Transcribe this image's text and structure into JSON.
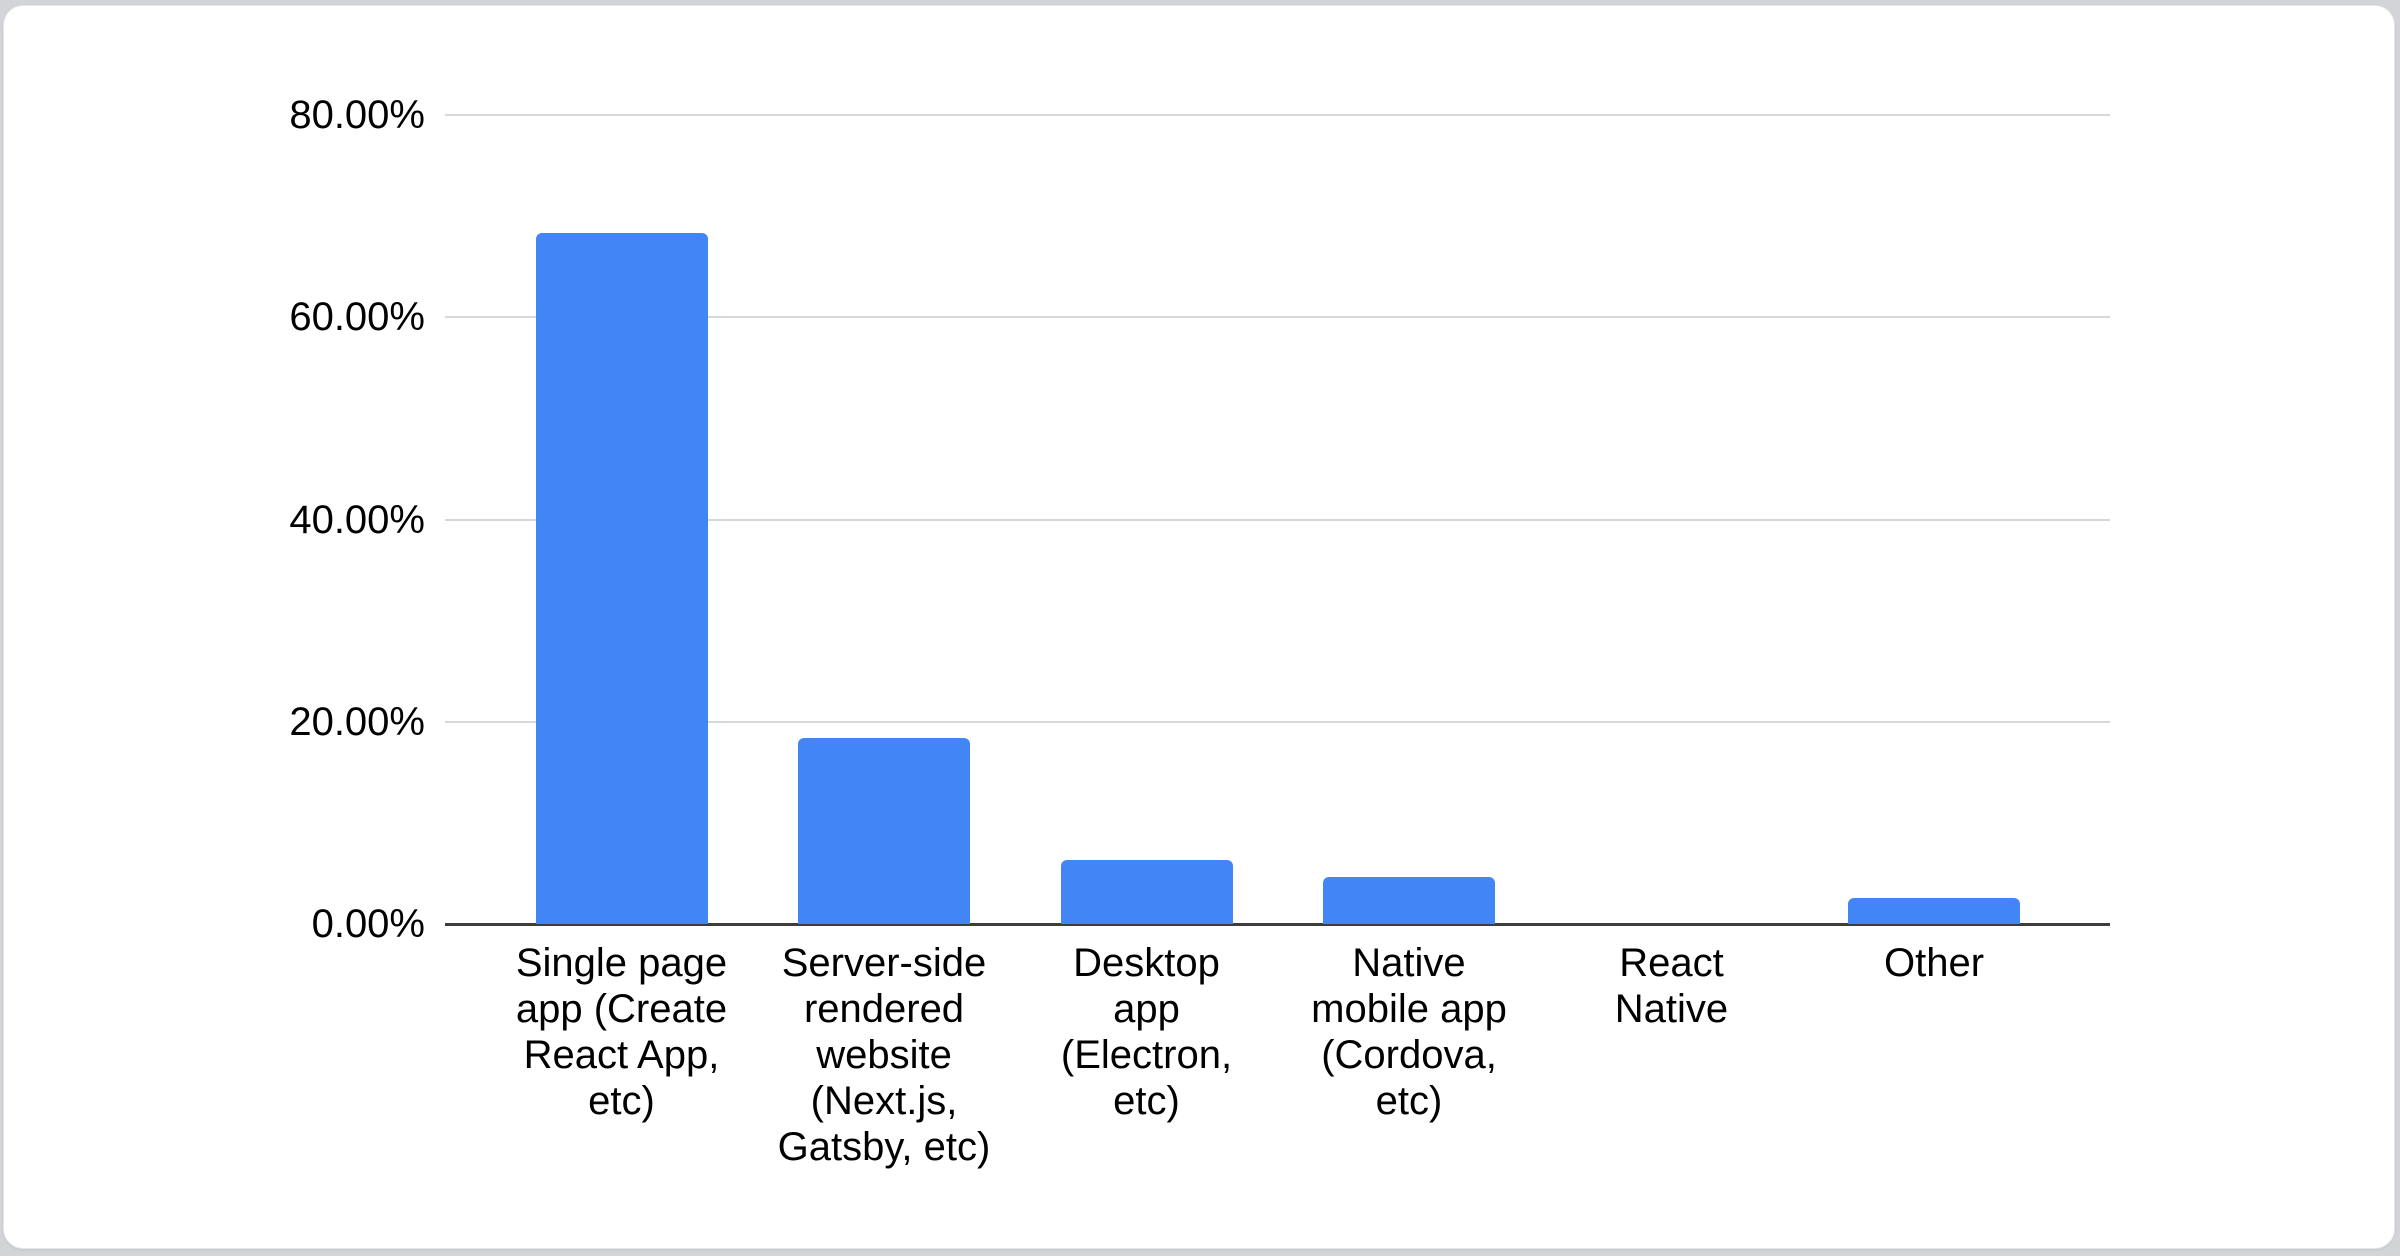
{
  "page": {
    "background_color": "#d2d4d8",
    "card_background_color": "#ffffff"
  },
  "chart_data": {
    "type": "bar",
    "title": "",
    "categories": [
      "Single page app (Create React App, etc)",
      "Server-side rendered website (Next.js, Gatsby, etc)",
      "Desktop app (Electron, etc)",
      "Native mobile app (Cordova, etc)",
      "React Native",
      "Other"
    ],
    "category_lines": [
      [
        "Single page",
        "app (Create",
        "React App,",
        "etc)"
      ],
      [
        "Server-side",
        "rendered",
        "website",
        "(Next.js,",
        "Gatsby, etc)"
      ],
      [
        "Desktop",
        "app",
        "(Electron,",
        "etc)"
      ],
      [
        "Native",
        "mobile app",
        "(Cordova,",
        "etc)"
      ],
      [
        "React",
        "Native"
      ],
      [
        "Other"
      ]
    ],
    "values": [
      68.3,
      18.4,
      6.3,
      4.6,
      0,
      2.6
    ],
    "unit": "%",
    "y_ticks": [
      {
        "label": "80.00%",
        "value": 80
      },
      {
        "label": "60.00%",
        "value": 60
      },
      {
        "label": "40.00%",
        "value": 40
      },
      {
        "label": "20.00%",
        "value": 20
      },
      {
        "label": "0.00%",
        "value": 0
      }
    ],
    "ylim": [
      0,
      80
    ],
    "grid": true,
    "legend": "none",
    "bar_color": "#4285f4",
    "axis_color": "#3d3d3d",
    "gridline_color": "#d7d7d7",
    "text_color": "#000000"
  }
}
